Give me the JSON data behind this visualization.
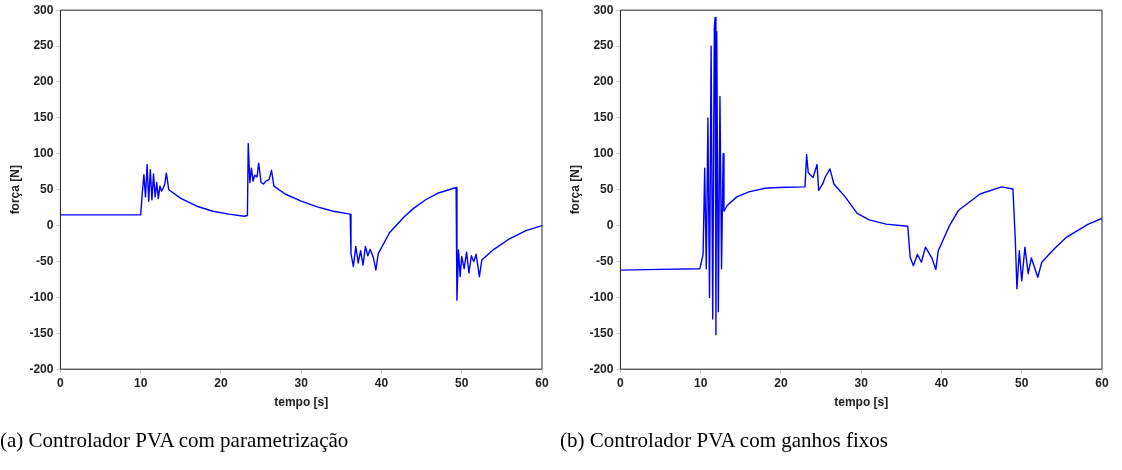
{
  "chart_data": [
    {
      "type": "line",
      "xlabel": "tempo [s]",
      "ylabel": "força [N]",
      "annotations": [
        "(a) Controlador PVA com parametrização"
      ],
      "xlim": [
        0,
        60
      ],
      "ylim": [
        -200,
        300
      ],
      "xticks": [
        0,
        10,
        20,
        30,
        40,
        50,
        60
      ],
      "yticks": [
        -200,
        -150,
        -100,
        -50,
        0,
        50,
        100,
        150,
        200,
        250,
        300
      ],
      "grid": false,
      "legend": false,
      "marker": "none",
      "line_style": "solid",
      "series": [
        {
          "color": "#0000ff",
          "x": [
            0,
            5,
            10,
            10.2,
            10.4,
            10.6,
            10.8,
            11,
            11.2,
            11.4,
            11.6,
            11.8,
            12,
            12.2,
            12.4,
            12.6,
            12.8,
            13,
            13.2,
            13.5,
            15,
            17,
            19,
            21,
            22.9,
            23.3,
            23.4,
            23.6,
            23.8,
            24,
            24.2,
            24.5,
            24.7,
            25,
            25.3,
            25.6,
            26,
            26.3,
            26.6,
            28,
            30,
            32,
            34,
            36.1,
            36.2,
            36.5,
            36.8,
            37.1,
            37.4,
            37.7,
            38,
            38.3,
            38.6,
            39,
            39.3,
            39.6,
            41,
            42.9,
            44,
            45.5,
            47,
            49,
            49.3,
            49.4,
            49.6,
            49.8,
            50,
            50.3,
            50.6,
            50.9,
            51.2,
            51.5,
            51.8,
            52.2,
            52.5,
            54,
            56,
            58,
            60
          ],
          "values": [
            15,
            15,
            15,
            45,
            71,
            40,
            85,
            34,
            78,
            36,
            72,
            40,
            60,
            38,
            55,
            48,
            52,
            58,
            73,
            50,
            38,
            27,
            20,
            16,
            13,
            14,
            114,
            60,
            80,
            62,
            70,
            68,
            87,
            60,
            58,
            62,
            64,
            77,
            55,
            44,
            34,
            26,
            20,
            16,
            -39,
            -57,
            -29,
            -52,
            -35,
            -55,
            -29,
            -42,
            -33,
            -45,
            -62,
            -39,
            -10,
            13,
            24,
            36,
            45,
            52,
            53,
            -104,
            -34,
            -71,
            -43,
            -60,
            -37,
            -66,
            -42,
            -50,
            -40,
            -71,
            -48,
            -33,
            -18,
            -7,
            0
          ]
        }
      ]
    },
    {
      "type": "line",
      "xlabel": "tempo [s]",
      "ylabel": "força [N]",
      "annotations": [
        "(b) Controlador PVA com ganhos fixos"
      ],
      "xlim": [
        0,
        60
      ],
      "ylim": [
        -200,
        300
      ],
      "xticks": [
        0,
        10,
        20,
        30,
        40,
        50,
        60
      ],
      "yticks": [
        -200,
        -150,
        -100,
        -50,
        0,
        50,
        100,
        150,
        200,
        250,
        300
      ],
      "grid": false,
      "legend": false,
      "marker": "none",
      "line_style": "solid",
      "series": [
        {
          "color": "#0000ff",
          "x": [
            0,
            5,
            9.9,
            10.3,
            10.5,
            10.7,
            10.9,
            11.1,
            11.3,
            11.5,
            11.7,
            11.8,
            11.9,
            12,
            12.2,
            12.4,
            12.6,
            12.8,
            12.9,
            13.3,
            14.5,
            16,
            18,
            19.6,
            23,
            23.2,
            23.4,
            23.7,
            24,
            24.5,
            24.7,
            25.2,
            25.5,
            26.1,
            26.6,
            28,
            29.5,
            31,
            33.1,
            35.8,
            36.1,
            36.5,
            37,
            37.5,
            38,
            38.8,
            39.3,
            39.6,
            41,
            42.1,
            44.8,
            47.5,
            48.9,
            49.2,
            49.4,
            49.7,
            50,
            50.4,
            50.8,
            51.2,
            52,
            52.5,
            54,
            55.6,
            58.3,
            60
          ],
          "values": [
            -62,
            -61,
            -60,
            -40,
            80,
            -60,
            150,
            -100,
            250,
            -130,
            275,
            290,
            -152,
            270,
            -120,
            180,
            -60,
            100,
            20,
            28,
            40,
            47,
            52,
            53,
            54,
            99,
            74,
            70,
            67,
            85,
            49,
            58,
            67,
            79,
            58,
            40,
            17,
            8,
            2,
            -1,
            -44,
            -56,
            -40,
            -51,
            -30,
            -45,
            -61,
            -35,
            0,
            21,
            44,
            54,
            51,
            -20,
            -88,
            -35,
            -77,
            -30,
            -67,
            -45,
            -72,
            -51,
            -33,
            -16,
            2,
            10
          ]
        }
      ]
    }
  ]
}
